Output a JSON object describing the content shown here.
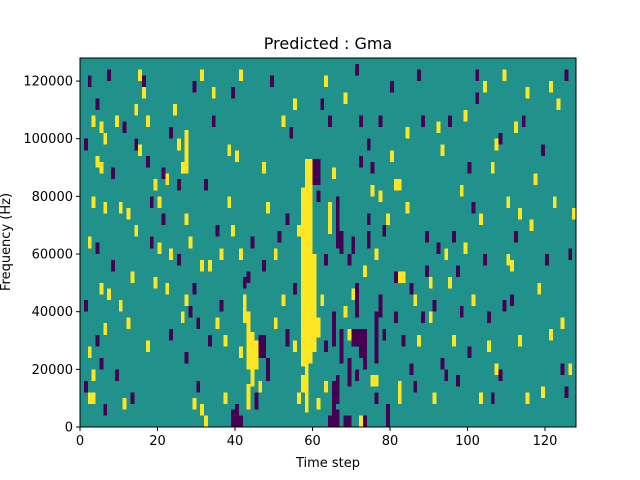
{
  "chart_data": {
    "type": "heatmap",
    "title": "Predicted : Gma",
    "xlabel": "Time step",
    "ylabel": "Frequency (Hz)",
    "xlim": [
      0,
      128
    ],
    "ylim": [
      0,
      128000
    ],
    "x_ticks": [
      0,
      20,
      40,
      60,
      80,
      100,
      120
    ],
    "x_tick_labels": [
      "0",
      "20",
      "40",
      "60",
      "80",
      "100",
      "120"
    ],
    "y_ticks": [
      0,
      20000,
      40000,
      60000,
      80000,
      100000,
      120000
    ],
    "y_tick_labels": [
      "0",
      "20000",
      "40000",
      "60000",
      "80000",
      "100000",
      "120000"
    ],
    "n_time_steps": 128,
    "n_freq_bins": 128,
    "values_legend": {
      "-1": "purple",
      "0": "teal",
      "1": "yellow"
    },
    "colors": {
      "low": "#440154",
      "mid": "#21918c",
      "high": "#fde725"
    },
    "regions": [
      {
        "t0": 57,
        "t1": 58,
        "f0": 21000,
        "f1": 83000,
        "value": 1
      },
      {
        "t0": 58,
        "t1": 59,
        "f0": 18000,
        "f1": 93000,
        "value": 1
      },
      {
        "t0": 59,
        "t1": 60,
        "f0": 22000,
        "f1": 93000,
        "value": 1
      },
      {
        "t0": 60,
        "t1": 61,
        "f0": 26000,
        "f1": 60000,
        "value": 1
      },
      {
        "t0": 56,
        "t1": 57,
        "f0": 66000,
        "f1": 70000,
        "value": 1
      },
      {
        "t0": 61,
        "t1": 62,
        "f0": 31000,
        "f1": 38000,
        "value": 1
      },
      {
        "t0": 64,
        "t1": 65,
        "f0": 67000,
        "f1": 78000,
        "value": 1
      },
      {
        "t0": 57,
        "t1": 59,
        "f0": 12000,
        "f1": 18000,
        "value": 1
      },
      {
        "t0": 58,
        "t1": 59,
        "f0": 5000,
        "f1": 12000,
        "value": 1
      },
      {
        "t0": 43,
        "t1": 44,
        "f0": 20000,
        "f1": 40000,
        "value": 1
      },
      {
        "t0": 44,
        "t1": 45,
        "f0": 14000,
        "f1": 33000,
        "value": 1
      },
      {
        "t0": 45,
        "t1": 46,
        "f0": 20000,
        "f1": 30000,
        "value": 1
      },
      {
        "t0": 42,
        "t1": 43,
        "f0": 36000,
        "f1": 46000,
        "value": 1
      },
      {
        "t0": 43,
        "t1": 44,
        "f0": 6000,
        "f1": 15000,
        "value": 1
      },
      {
        "t0": 41,
        "t1": 42,
        "f0": 24000,
        "f1": 28000,
        "value": 1
      },
      {
        "t0": 27,
        "t1": 28,
        "f0": 88000,
        "f1": 103000,
        "value": 1
      },
      {
        "t0": 81,
        "t1": 83,
        "f0": 82000,
        "f1": 86000,
        "value": 1
      },
      {
        "t0": 2,
        "t1": 4,
        "f0": 8000,
        "f1": 12000,
        "value": 1
      },
      {
        "t0": 72,
        "t1": 74,
        "f0": 0,
        "f1": 4000,
        "value": 1
      },
      {
        "t0": 32,
        "t1": 33,
        "f0": 0,
        "f1": 4000,
        "value": 1
      },
      {
        "t0": 75,
        "t1": 77,
        "f0": 14000,
        "f1": 18000,
        "value": 1
      },
      {
        "t0": 66,
        "t1": 67,
        "f0": 62000,
        "f1": 80000,
        "value": -1
      },
      {
        "t0": 67,
        "t1": 68,
        "f0": 60000,
        "f1": 68000,
        "value": -1
      },
      {
        "t0": 65,
        "t1": 66,
        "f0": 28000,
        "f1": 40000,
        "value": -1
      },
      {
        "t0": 67,
        "t1": 68,
        "f0": 22000,
        "f1": 34000,
        "value": -1
      },
      {
        "t0": 65,
        "t1": 66,
        "f0": 4000,
        "f1": 16000,
        "value": -1
      },
      {
        "t0": 66,
        "t1": 67,
        "f0": 8000,
        "f1": 18000,
        "value": -1
      },
      {
        "t0": 66,
        "t1": 67,
        "f0": 0,
        "f1": 6000,
        "value": -1
      },
      {
        "t0": 69,
        "t1": 70,
        "f0": 14000,
        "f1": 24000,
        "value": -1
      },
      {
        "t0": 70,
        "t1": 72,
        "f0": 28000,
        "f1": 34000,
        "value": -1
      },
      {
        "t0": 71,
        "t1": 72,
        "f0": 38000,
        "f1": 50000,
        "value": -1
      },
      {
        "t0": 60,
        "t1": 62,
        "f0": 84000,
        "f1": 93000,
        "value": -1
      },
      {
        "t0": 61,
        "t1": 62,
        "f0": 78000,
        "f1": 82000,
        "value": -1
      },
      {
        "t0": 40,
        "t1": 41,
        "f0": 0,
        "f1": 8000,
        "value": -1
      },
      {
        "t0": 41,
        "t1": 42,
        "f0": 0,
        "f1": 4000,
        "value": -1
      },
      {
        "t0": 64,
        "t1": 66,
        "f0": 0,
        "f1": 4000,
        "value": -1
      },
      {
        "t0": 68,
        "t1": 70,
        "f0": 0,
        "f1": 4000,
        "value": -1
      },
      {
        "t0": 76,
        "t1": 77,
        "f0": 8000,
        "f1": 12000,
        "value": -1
      },
      {
        "t0": 76,
        "t1": 77,
        "f0": 22000,
        "f1": 40000,
        "value": -1
      },
      {
        "t0": 77,
        "t1": 78,
        "f0": 38000,
        "f1": 46000,
        "value": -1
      },
      {
        "t0": 79,
        "t1": 80,
        "f0": 0,
        "f1": 8000,
        "value": -1
      },
      {
        "t0": 46,
        "t1": 48,
        "f0": 24000,
        "f1": 32000,
        "value": -1
      },
      {
        "t0": 48,
        "t1": 49,
        "f0": 16000,
        "f1": 24000,
        "value": -1
      },
      {
        "t0": 53,
        "t1": 54,
        "f0": 28000,
        "f1": 34000,
        "value": -1
      },
      {
        "t0": 73,
        "t1": 74,
        "f0": 0,
        "f1": 4000,
        "value": -1
      },
      {
        "t0": 45,
        "t1": 46,
        "f0": 6000,
        "f1": 12000,
        "value": -1
      },
      {
        "t0": 39,
        "t1": 40,
        "f0": 0,
        "f1": 6000,
        "value": -1
      },
      {
        "t0": 70,
        "t1": 71,
        "f0": 60000,
        "f1": 66000,
        "value": -1
      },
      {
        "t0": 74,
        "t1": 75,
        "f0": 62000,
        "f1": 68000,
        "value": -1
      },
      {
        "t0": 63,
        "t1": 64,
        "f0": 56000,
        "f1": 60000,
        "value": -1
      },
      {
        "t0": 72,
        "t1": 73,
        "f0": 24000,
        "f1": 34000,
        "value": -1
      },
      {
        "t0": 73,
        "t1": 74,
        "f0": 20000,
        "f1": 34000,
        "value": -1
      }
    ],
    "cells": [
      [
        1,
        12,
        -1
      ],
      [
        2,
        118,
        -1
      ],
      [
        4,
        110,
        -1
      ],
      [
        5,
        102,
        1
      ],
      [
        6,
        98,
        1
      ],
      [
        3,
        104,
        1
      ],
      [
        7,
        120,
        -1
      ],
      [
        5,
        88,
        1
      ],
      [
        6,
        74,
        1
      ],
      [
        4,
        60,
        -1
      ],
      [
        5,
        46,
        1
      ],
      [
        6,
        32,
        1
      ],
      [
        4,
        28,
        -1
      ],
      [
        3,
        8,
        1
      ],
      [
        5,
        20,
        -1
      ],
      [
        9,
        16,
        -1
      ],
      [
        8,
        54,
        -1
      ],
      [
        10,
        40,
        1
      ],
      [
        11,
        102,
        -1
      ],
      [
        12,
        72,
        1
      ],
      [
        13,
        8,
        -1
      ],
      [
        14,
        96,
        -1
      ],
      [
        15,
        120,
        1
      ],
      [
        16,
        114,
        1
      ],
      [
        17,
        90,
        -1
      ],
      [
        18,
        76,
        -1
      ],
      [
        19,
        82,
        1
      ],
      [
        20,
        60,
        1
      ],
      [
        21,
        70,
        -1
      ],
      [
        22,
        46,
        1
      ],
      [
        23,
        30,
        -1
      ],
      [
        24,
        108,
        1
      ],
      [
        25,
        56,
        -1
      ],
      [
        26,
        36,
        1
      ],
      [
        27,
        22,
        -1
      ],
      [
        28,
        62,
        1
      ],
      [
        29,
        46,
        -1
      ],
      [
        30,
        12,
        -1
      ],
      [
        31,
        120,
        1
      ],
      [
        32,
        82,
        -1
      ],
      [
        33,
        54,
        1
      ],
      [
        34,
        104,
        -1
      ],
      [
        35,
        66,
        -1
      ],
      [
        36,
        40,
        -1
      ],
      [
        37,
        28,
        1
      ],
      [
        38,
        76,
        1
      ],
      [
        39,
        114,
        -1
      ],
      [
        40,
        92,
        1
      ],
      [
        41,
        58,
        1
      ],
      [
        42,
        48,
        -1
      ],
      [
        44,
        62,
        -1
      ],
      [
        46,
        12,
        1
      ],
      [
        47,
        54,
        -1
      ],
      [
        48,
        74,
        1
      ],
      [
        49,
        118,
        -1
      ],
      [
        50,
        34,
        1
      ],
      [
        51,
        64,
        -1
      ],
      [
        52,
        42,
        1
      ],
      [
        54,
        100,
        -1
      ],
      [
        55,
        110,
        1
      ],
      [
        62,
        110,
        -1
      ],
      [
        63,
        118,
        1
      ],
      [
        64,
        104,
        -1
      ],
      [
        65,
        86,
        1
      ],
      [
        68,
        112,
        1
      ],
      [
        69,
        56,
        -1
      ],
      [
        70,
        44,
        1
      ],
      [
        71,
        122,
        -1
      ],
      [
        72,
        90,
        -1
      ],
      [
        73,
        52,
        1
      ],
      [
        74,
        70,
        -1
      ],
      [
        75,
        80,
        1
      ],
      [
        76,
        58,
        1
      ],
      [
        77,
        104,
        -1
      ],
      [
        78,
        66,
        -1
      ],
      [
        80,
        92,
        1
      ],
      [
        81,
        36,
        -1
      ],
      [
        82,
        50,
        1
      ],
      [
        83,
        28,
        -1
      ],
      [
        84,
        74,
        1
      ],
      [
        85,
        18,
        -1
      ],
      [
        86,
        42,
        1
      ],
      [
        87,
        120,
        -1
      ],
      [
        88,
        104,
        -1
      ],
      [
        89,
        52,
        -1
      ],
      [
        90,
        36,
        1
      ],
      [
        91,
        8,
        1
      ],
      [
        92,
        60,
        -1
      ],
      [
        93,
        94,
        1
      ],
      [
        94,
        16,
        -1
      ],
      [
        95,
        104,
        -1
      ],
      [
        96,
        28,
        1
      ],
      [
        97,
        52,
        -1
      ],
      [
        98,
        80,
        1
      ],
      [
        99,
        60,
        1
      ],
      [
        100,
        24,
        -1
      ],
      [
        101,
        42,
        1
      ],
      [
        102,
        112,
        -1
      ],
      [
        103,
        70,
        1
      ],
      [
        104,
        56,
        -1
      ],
      [
        105,
        36,
        -1
      ],
      [
        106,
        88,
        1
      ],
      [
        107,
        18,
        1
      ],
      [
        108,
        98,
        -1
      ],
      [
        109,
        120,
        1
      ],
      [
        110,
        76,
        1
      ],
      [
        111,
        42,
        -1
      ],
      [
        112,
        64,
        -1
      ],
      [
        113,
        28,
        1
      ],
      [
        114,
        104,
        -1
      ],
      [
        115,
        8,
        1
      ],
      [
        116,
        68,
        1
      ],
      [
        117,
        84,
        1
      ],
      [
        118,
        46,
        1
      ],
      [
        119,
        94,
        -1
      ],
      [
        120,
        56,
        -1
      ],
      [
        121,
        30,
        1
      ],
      [
        122,
        76,
        1
      ],
      [
        123,
        110,
        1
      ],
      [
        124,
        18,
        -1
      ],
      [
        125,
        120,
        -1
      ],
      [
        126,
        58,
        -1
      ],
      [
        127,
        72,
        1
      ],
      [
        125,
        10,
        -1
      ],
      [
        126,
        18,
        1
      ],
      [
        124,
        34,
        1
      ],
      [
        121,
        116,
        1
      ],
      [
        119,
        10,
        1
      ],
      [
        115,
        114,
        1
      ],
      [
        111,
        54,
        1
      ],
      [
        108,
        16,
        -1
      ],
      [
        106,
        8,
        -1
      ],
      [
        104,
        116,
        1
      ],
      [
        102,
        120,
        -1
      ],
      [
        100,
        88,
        -1
      ],
      [
        97,
        14,
        -1
      ],
      [
        95,
        48,
        1
      ],
      [
        93,
        20,
        -1
      ],
      [
        91,
        40,
        -1
      ],
      [
        88,
        36,
        -1
      ],
      [
        86,
        12,
        -1
      ],
      [
        84,
        100,
        1
      ],
      [
        83,
        50,
        1
      ],
      [
        82,
        8,
        1
      ],
      [
        31,
        4,
        1
      ],
      [
        29,
        6,
        1
      ],
      [
        30,
        34,
        -1
      ],
      [
        31,
        54,
        1
      ],
      [
        35,
        34,
        1
      ],
      [
        36,
        58,
        1
      ],
      [
        37,
        8,
        1
      ],
      [
        38,
        94,
        1
      ],
      [
        39,
        66,
        1
      ],
      [
        28,
        38,
        -1
      ],
      [
        27,
        70,
        1
      ],
      [
        26,
        88,
        1
      ],
      [
        25,
        82,
        -1
      ],
      [
        23,
        100,
        -1
      ],
      [
        22,
        84,
        1
      ],
      [
        21,
        86,
        -1
      ],
      [
        20,
        76,
        1
      ],
      [
        19,
        48,
        1
      ],
      [
        18,
        62,
        -1
      ],
      [
        17,
        26,
        1
      ],
      [
        16,
        118,
        -1
      ],
      [
        15,
        94,
        1
      ],
      [
        14,
        66,
        1
      ],
      [
        13,
        50,
        1
      ],
      [
        12,
        34,
        1
      ],
      [
        10,
        74,
        1
      ],
      [
        9,
        104,
        1
      ],
      [
        8,
        86,
        -1
      ],
      [
        7,
        44,
        1
      ],
      [
        3,
        16,
        1
      ],
      [
        2,
        24,
        1
      ],
      [
        1,
        40,
        -1
      ],
      [
        2,
        62,
        1
      ],
      [
        3,
        76,
        1
      ],
      [
        4,
        90,
        1
      ],
      [
        1,
        96,
        -1
      ],
      [
        6,
        4,
        -1
      ],
      [
        11,
        6,
        1
      ],
      [
        14,
        108,
        1
      ],
      [
        17,
        104,
        1
      ],
      [
        23,
        58,
        1
      ],
      [
        25,
        96,
        1
      ],
      [
        27,
        42,
        1
      ],
      [
        29,
        116,
        -1
      ],
      [
        33,
        28,
        -1
      ],
      [
        34,
        114,
        1
      ],
      [
        41,
        120,
        1
      ],
      [
        43,
        50,
        -1
      ],
      [
        47,
        88,
        1
      ],
      [
        50,
        58,
        1
      ],
      [
        52,
        104,
        1
      ],
      [
        53,
        70,
        -1
      ],
      [
        55,
        46,
        -1
      ],
      [
        55,
        26,
        1
      ],
      [
        56,
        8,
        1
      ],
      [
        62,
        42,
        1
      ],
      [
        63,
        26,
        -1
      ],
      [
        63,
        12,
        1
      ],
      [
        61,
        6,
        1
      ],
      [
        68,
        38,
        1
      ],
      [
        69,
        30,
        1
      ],
      [
        71,
        16,
        -1
      ],
      [
        72,
        104,
        -1
      ],
      [
        74,
        96,
        -1
      ],
      [
        75,
        88,
        -1
      ],
      [
        77,
        78,
        1
      ],
      [
        78,
        30,
        -1
      ],
      [
        79,
        70,
        1
      ],
      [
        80,
        116,
        -1
      ],
      [
        81,
        50,
        -1
      ],
      [
        82,
        12,
        1
      ],
      [
        85,
        46,
        -1
      ],
      [
        87,
        28,
        1
      ],
      [
        89,
        64,
        -1
      ],
      [
        90,
        48,
        1
      ],
      [
        92,
        102,
        1
      ],
      [
        94,
        58,
        1
      ],
      [
        96,
        64,
        -1
      ],
      [
        98,
        38,
        -1
      ],
      [
        99,
        106,
        1
      ],
      [
        101,
        74,
        -1
      ],
      [
        103,
        8,
        1
      ],
      [
        105,
        26,
        1
      ],
      [
        107,
        96,
        1
      ],
      [
        109,
        40,
        -1
      ],
      [
        110,
        56,
        1
      ],
      [
        112,
        102,
        1
      ],
      [
        113,
        72,
        1
      ]
    ]
  }
}
